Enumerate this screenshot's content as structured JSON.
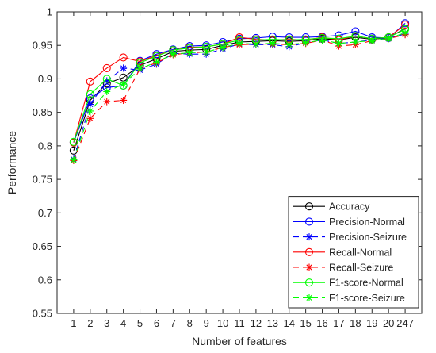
{
  "chart_data": {
    "type": "line",
    "title": "",
    "xlabel": "Number of features",
    "ylabel": "Performance",
    "x": [
      "1",
      "2",
      "3",
      "4",
      "5",
      "6",
      "7",
      "8",
      "9",
      "10",
      "11",
      "12",
      "13",
      "14",
      "15",
      "16",
      "17",
      "18",
      "19",
      "20",
      "247"
    ],
    "ylim": [
      0.55,
      1.0
    ],
    "yticks": [
      "0.55",
      "0.6",
      "0.65",
      "0.7",
      "0.75",
      "0.8",
      "0.85",
      "0.9",
      "0.95",
      "1"
    ],
    "grid": false,
    "legend_position": "bottom-right",
    "series": [
      {
        "name": "Accuracy",
        "color": "#000000",
        "dash": "solid",
        "marker": "circle",
        "values": [
          0.793,
          0.868,
          0.893,
          0.902,
          0.92,
          0.93,
          0.941,
          0.943,
          0.944,
          0.95,
          0.955,
          0.956,
          0.957,
          0.956,
          0.957,
          0.96,
          0.958,
          0.962,
          0.959,
          0.962,
          0.975
        ]
      },
      {
        "name": "Precision-Normal",
        "color": "#0000ff",
        "dash": "solid",
        "marker": "circle",
        "values": [
          0.805,
          0.871,
          0.887,
          0.89,
          0.927,
          0.937,
          0.944,
          0.949,
          0.95,
          0.955,
          0.96,
          0.961,
          0.963,
          0.962,
          0.962,
          0.963,
          0.965,
          0.971,
          0.962,
          0.961,
          0.983
        ]
      },
      {
        "name": "Precision-Seizure",
        "color": "#0000ff",
        "dash": "dash",
        "marker": "star",
        "values": [
          0.78,
          0.862,
          0.897,
          0.916,
          0.913,
          0.922,
          0.938,
          0.937,
          0.937,
          0.945,
          0.952,
          0.951,
          0.951,
          0.948,
          0.954,
          0.958,
          0.953,
          0.955,
          0.958,
          0.961,
          0.967
        ]
      },
      {
        "name": "Recall-Normal",
        "color": "#ff0000",
        "dash": "solid",
        "marker": "circle",
        "values": [
          0.805,
          0.896,
          0.916,
          0.932,
          0.926,
          0.935,
          0.943,
          0.947,
          0.948,
          0.952,
          0.962,
          0.959,
          0.958,
          0.959,
          0.958,
          0.962,
          0.958,
          0.964,
          0.96,
          0.962,
          0.981
        ]
      },
      {
        "name": "Recall-Seizure",
        "color": "#ff0000",
        "dash": "dash",
        "marker": "star",
        "values": [
          0.778,
          0.841,
          0.866,
          0.868,
          0.915,
          0.924,
          0.936,
          0.939,
          0.94,
          0.947,
          0.951,
          0.952,
          0.952,
          0.951,
          0.953,
          0.958,
          0.949,
          0.951,
          0.957,
          0.96,
          0.966
        ]
      },
      {
        "name": "F1-score-Normal",
        "color": "#00ff00",
        "dash": "solid",
        "marker": "circle",
        "values": [
          0.806,
          0.877,
          0.9,
          0.89,
          0.924,
          0.934,
          0.943,
          0.946,
          0.948,
          0.952,
          0.958,
          0.958,
          0.959,
          0.958,
          0.959,
          0.961,
          0.96,
          0.964,
          0.96,
          0.962,
          0.974
        ]
      },
      {
        "name": "F1-score-Seizure",
        "color": "#00ff00",
        "dash": "dash",
        "marker": "star",
        "values": [
          0.779,
          0.852,
          0.881,
          0.892,
          0.915,
          0.925,
          0.937,
          0.939,
          0.94,
          0.947,
          0.953,
          0.952,
          0.953,
          0.951,
          0.954,
          0.958,
          0.953,
          0.955,
          0.957,
          0.96,
          0.969
        ]
      }
    ]
  }
}
